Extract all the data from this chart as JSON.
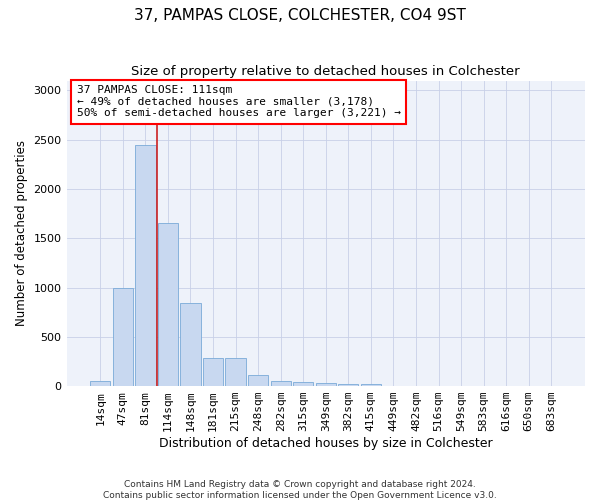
{
  "title": "37, PAMPAS CLOSE, COLCHESTER, CO4 9ST",
  "subtitle": "Size of property relative to detached houses in Colchester",
  "xlabel": "Distribution of detached houses by size in Colchester",
  "ylabel": "Number of detached properties",
  "footnote1": "Contains HM Land Registry data © Crown copyright and database right 2024.",
  "footnote2": "Contains public sector information licensed under the Open Government Licence v3.0.",
  "annotation_line1": "37 PAMPAS CLOSE: 111sqm",
  "annotation_line2": "← 49% of detached houses are smaller (3,178)",
  "annotation_line3": "50% of semi-detached houses are larger (3,221) →",
  "categories": [
    "14sqm",
    "47sqm",
    "81sqm",
    "114sqm",
    "148sqm",
    "181sqm",
    "215sqm",
    "248sqm",
    "282sqm",
    "315sqm",
    "349sqm",
    "382sqm",
    "415sqm",
    "449sqm",
    "482sqm",
    "516sqm",
    "549sqm",
    "583sqm",
    "616sqm",
    "650sqm",
    "683sqm"
  ],
  "values": [
    55,
    1000,
    2450,
    1650,
    840,
    290,
    280,
    115,
    55,
    45,
    35,
    20,
    25,
    0,
    0,
    0,
    0,
    0,
    0,
    0,
    0
  ],
  "bar_color": "#c8d8f0",
  "bar_edge_color": "#7aaad8",
  "vline_color": "#cc2222",
  "background_color": "#eef2fa",
  "ylim": [
    0,
    3100
  ],
  "yticks": [
    0,
    500,
    1000,
    1500,
    2000,
    2500,
    3000
  ],
  "grid_color": "#c8d0e8",
  "title_fontsize": 11,
  "subtitle_fontsize": 9.5,
  "xlabel_fontsize": 9,
  "ylabel_fontsize": 8.5,
  "tick_fontsize": 8,
  "annot_fontsize": 8
}
